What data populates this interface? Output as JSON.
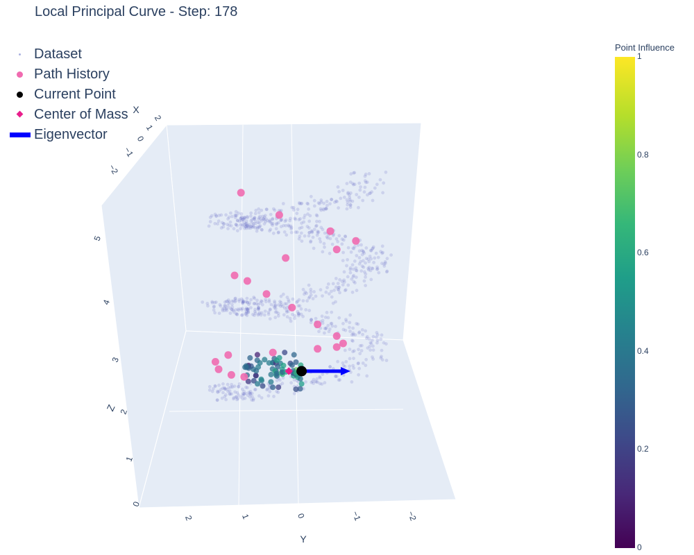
{
  "title": "Local Principal Curve - Step: 178",
  "legend": [
    {
      "label": "Dataset",
      "color": "#aab0e0",
      "symbol": "dot"
    },
    {
      "label": "Path History",
      "color": "#f06bb0",
      "symbol": "circle"
    },
    {
      "label": "Current Point",
      "color": "#000000",
      "symbol": "circle"
    },
    {
      "label": "Center of Mass",
      "color": "#e91e8c",
      "symbol": "diamond"
    },
    {
      "label": "Eigenvector",
      "color": "#0000ff",
      "symbol": "line"
    }
  ],
  "colorbar": {
    "title": "Point Influence",
    "ticks": [
      "0",
      "0.2",
      "0.4",
      "0.6",
      "0.8",
      "1"
    ],
    "range": [
      0,
      1
    ]
  },
  "axes": {
    "x": {
      "title": "X",
      "ticks": [
        "2",
        "1",
        "0",
        "−1",
        "−2"
      ]
    },
    "y": {
      "title": "Y",
      "ticks": [
        "2",
        "1",
        "0",
        "−1",
        "−2"
      ]
    },
    "z": {
      "title": "Z",
      "ticks": [
        "0",
        "1",
        "2",
        "3",
        "4",
        "5"
      ]
    }
  },
  "chart_data": {
    "type": "scatter3d",
    "title": "Local Principal Curve - Step: 178",
    "step": 178,
    "description_series": [
      "Dataset",
      "Path History",
      "Current Point",
      "Center of Mass",
      "Eigenvector"
    ],
    "dataset": {
      "shape": "helix",
      "turns": 2.6,
      "radius": 1.0,
      "z_range": [
        2.2,
        5.8
      ],
      "points": 900
    },
    "path_history": [
      {
        "x": 0.95,
        "y": 0.85,
        "z": 2.75
      },
      {
        "x": 0.55,
        "y": 1.05,
        "z": 2.7
      },
      {
        "x": 0.1,
        "y": 1.25,
        "z": 2.7
      },
      {
        "x": -0.5,
        "y": 1.3,
        "z": 2.7
      },
      {
        "x": -0.95,
        "y": 1.1,
        "z": 2.72
      },
      {
        "x": -1.0,
        "y": 0.4,
        "z": 2.75
      },
      {
        "x": -0.8,
        "y": -0.3,
        "z": 2.85
      },
      {
        "x": -0.2,
        "y": -0.6,
        "z": 3.0
      },
      {
        "x": 0.5,
        "y": -0.7,
        "z": 3.2
      },
      {
        "x": 0.9,
        "y": -0.6,
        "z": 3.4
      },
      {
        "x": 0.95,
        "y": -0.3,
        "z": 3.6
      },
      {
        "x": 0.6,
        "y": 0.1,
        "z": 3.8
      },
      {
        "x": 0.0,
        "y": 0.5,
        "z": 3.9
      },
      {
        "x": -0.3,
        "y": 0.8,
        "z": 4.05
      },
      {
        "x": -0.5,
        "y": 1.0,
        "z": 4.1
      },
      {
        "x": -0.9,
        "y": 0.2,
        "z": 4.3
      },
      {
        "x": -0.6,
        "y": -0.6,
        "z": 4.5
      },
      {
        "x": 0.2,
        "y": -0.9,
        "z": 4.8
      },
      {
        "x": 0.9,
        "y": -0.5,
        "z": 5.1
      },
      {
        "x": 0.6,
        "y": 0.3,
        "z": 5.3
      },
      {
        "x": -0.2,
        "y": 0.9,
        "z": 5.5
      }
    ],
    "current_point": {
      "x": 0.0,
      "y": -0.05,
      "z": 2.65
    },
    "center_of_mass": {
      "x": 0.0,
      "y": 0.15,
      "z": 2.65
    },
    "eigenvector": {
      "from": [
        0.0,
        -0.05,
        2.65
      ],
      "to": [
        0.0,
        -0.75,
        2.65
      ]
    },
    "influence_range": [
      0,
      1
    ],
    "xlim": [
      -2.5,
      2.5
    ],
    "ylim": [
      -2.5,
      2.5
    ],
    "zlim": [
      0,
      6
    ]
  }
}
